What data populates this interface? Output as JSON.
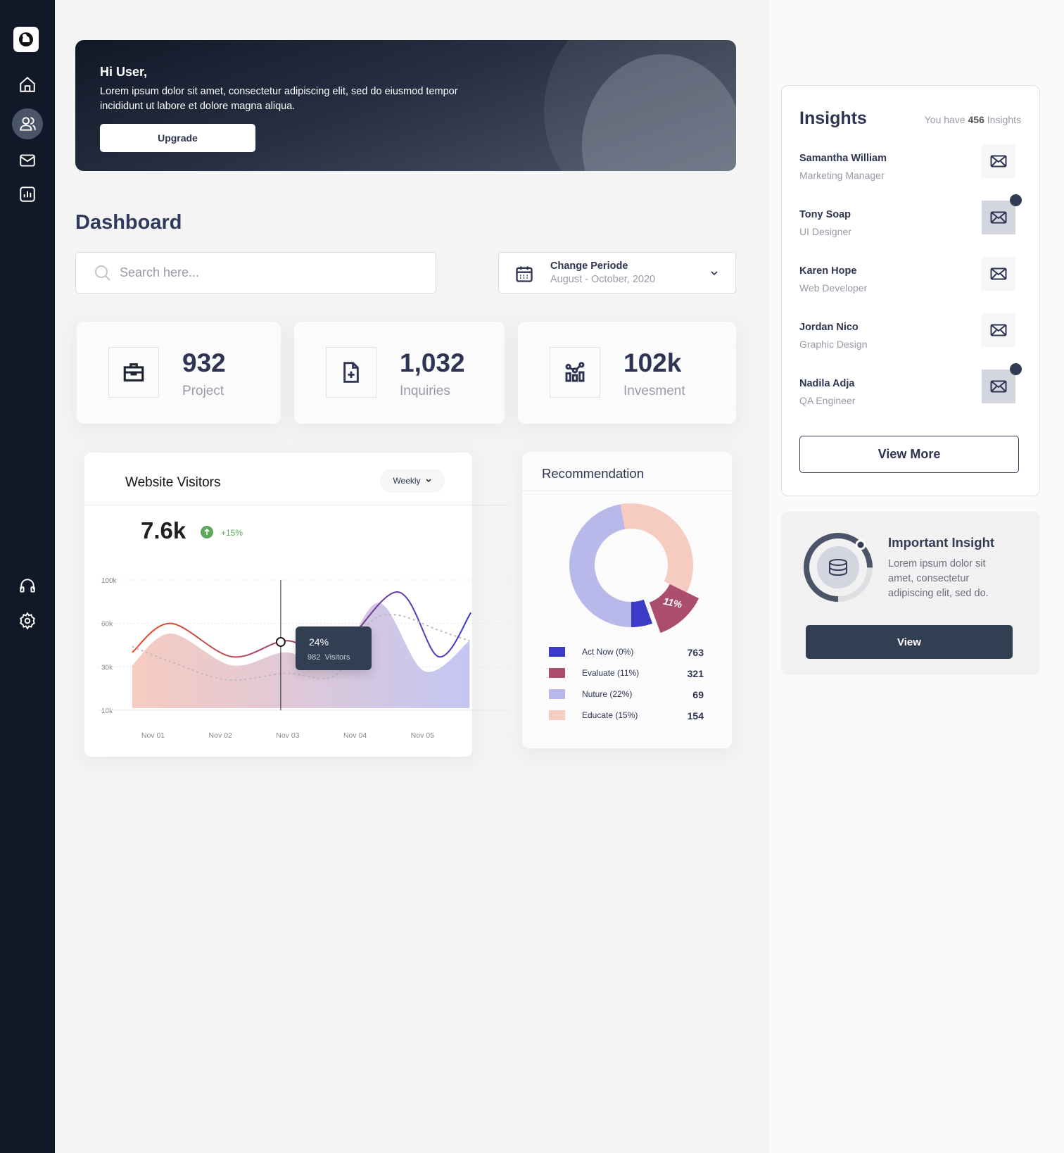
{
  "colors": {
    "sidebar": "#111827",
    "accent": "#323c53",
    "positive": "#5aaa5a",
    "act_now": "#3b3bc8",
    "evaluate": "#ab4d6c",
    "nuture": "#b8b9ea",
    "educate": "#f6cbc0"
  },
  "sidebar": {
    "items": [
      {
        "icon": "logo-icon"
      },
      {
        "icon": "home-icon"
      },
      {
        "icon": "users-icon",
        "active": true
      },
      {
        "icon": "mail-icon"
      },
      {
        "icon": "chart-icon"
      },
      {
        "icon": "headphones-icon"
      },
      {
        "icon": "gear-icon"
      }
    ]
  },
  "banner": {
    "greeting": "Hi User,",
    "text": "Lorem ipsum dolor sit amet, consectetur adipiscing elit, sed do eiusmod tempor incididunt ut labore et dolore magna aliqua.",
    "button": "Upgrade"
  },
  "page_title": "Dashboard",
  "search": {
    "placeholder": "Search here..."
  },
  "period": {
    "label": "Change Periode",
    "value": "August - October, 2020"
  },
  "stats": [
    {
      "value": "932",
      "label": "Project",
      "icon": "briefcase-icon"
    },
    {
      "value": "1,032",
      "label": "Inquiries",
      "icon": "file-plus-icon"
    },
    {
      "value": "102k",
      "label": "Invesment",
      "icon": "analytics-icon"
    }
  ],
  "visitors": {
    "title": "Website Visitors",
    "filter": "Weekly",
    "total": "7.6k",
    "change": "+15%",
    "tooltip": {
      "percent": "24%",
      "visitors": "982  Visitors"
    }
  },
  "chart_data": [
    {
      "type": "line",
      "categories": [
        "Nov 01",
        "Nov 02",
        "Nov 03",
        "Nov 04",
        "Nov 05"
      ],
      "y_ticks": [
        "100k",
        "60k",
        "30k",
        "10k"
      ],
      "y_tick_values": [
        100000,
        60000,
        30000,
        10000
      ],
      "grid": true,
      "series": [
        {
          "style": "line",
          "x": [
            0.69,
            1.26,
            2.17,
            2.97,
            3.7,
            4.63,
            5.24,
            5.72
          ],
          "values": [
            40000,
            60000,
            37000,
            48000,
            40000,
            89000,
            37000,
            70000
          ]
        },
        {
          "style": "area",
          "x": [
            0.69,
            1.26,
            2.17,
            2.97,
            3.7,
            4.35,
            5.03,
            5.7
          ],
          "values": [
            31000,
            53000,
            31000,
            40000,
            31000,
            79000,
            28000,
            48000
          ]
        },
        {
          "style": "dashed",
          "x": [
            0.69,
            1.24,
            2.1,
            2.97,
            3.7,
            4.18,
            4.6,
            5.26,
            5.7
          ],
          "values": [
            44000,
            34000,
            24000,
            27000,
            26000,
            59000,
            68000,
            55000,
            48000
          ]
        }
      ],
      "highlight": {
        "x": "Nov 03",
        "percent": "24%",
        "visitors": 982
      }
    },
    {
      "type": "pie",
      "title": "Recommendation",
      "slice_label": "11%",
      "items": [
        {
          "label": "Act Now (0%)",
          "value": 763,
          "color": "#3b3bc8"
        },
        {
          "label": "Evaluate (11%)",
          "value": 321,
          "color": "#ab4d6c"
        },
        {
          "label": "Nuture (22%)",
          "value": 69,
          "color": "#b8b9ea"
        },
        {
          "label": "Educate (15%)",
          "value": 154,
          "color": "#f6cbc0"
        }
      ]
    }
  ],
  "insights": {
    "title": "Insights",
    "summary_pre": "You have ",
    "count": "456",
    "summary_post": " Insights",
    "people": [
      {
        "name": "Samantha William",
        "role": "Marketing Manager",
        "unread": false
      },
      {
        "name": "Tony Soap",
        "role": "UI Designer",
        "unread": true
      },
      {
        "name": "Karen Hope",
        "role": "Web Developer",
        "unread": false
      },
      {
        "name": "Jordan Nico",
        "role": "Graphic Design",
        "unread": false
      },
      {
        "name": "Nadila Adja",
        "role": "QA Engineer",
        "unread": true
      }
    ],
    "view_more": "View More"
  },
  "important": {
    "title": "Important Insight",
    "text": "Lorem ipsum dolor sit amet, consectetur adipiscing elit, sed do.",
    "button": "View",
    "progress": 0.75
  }
}
